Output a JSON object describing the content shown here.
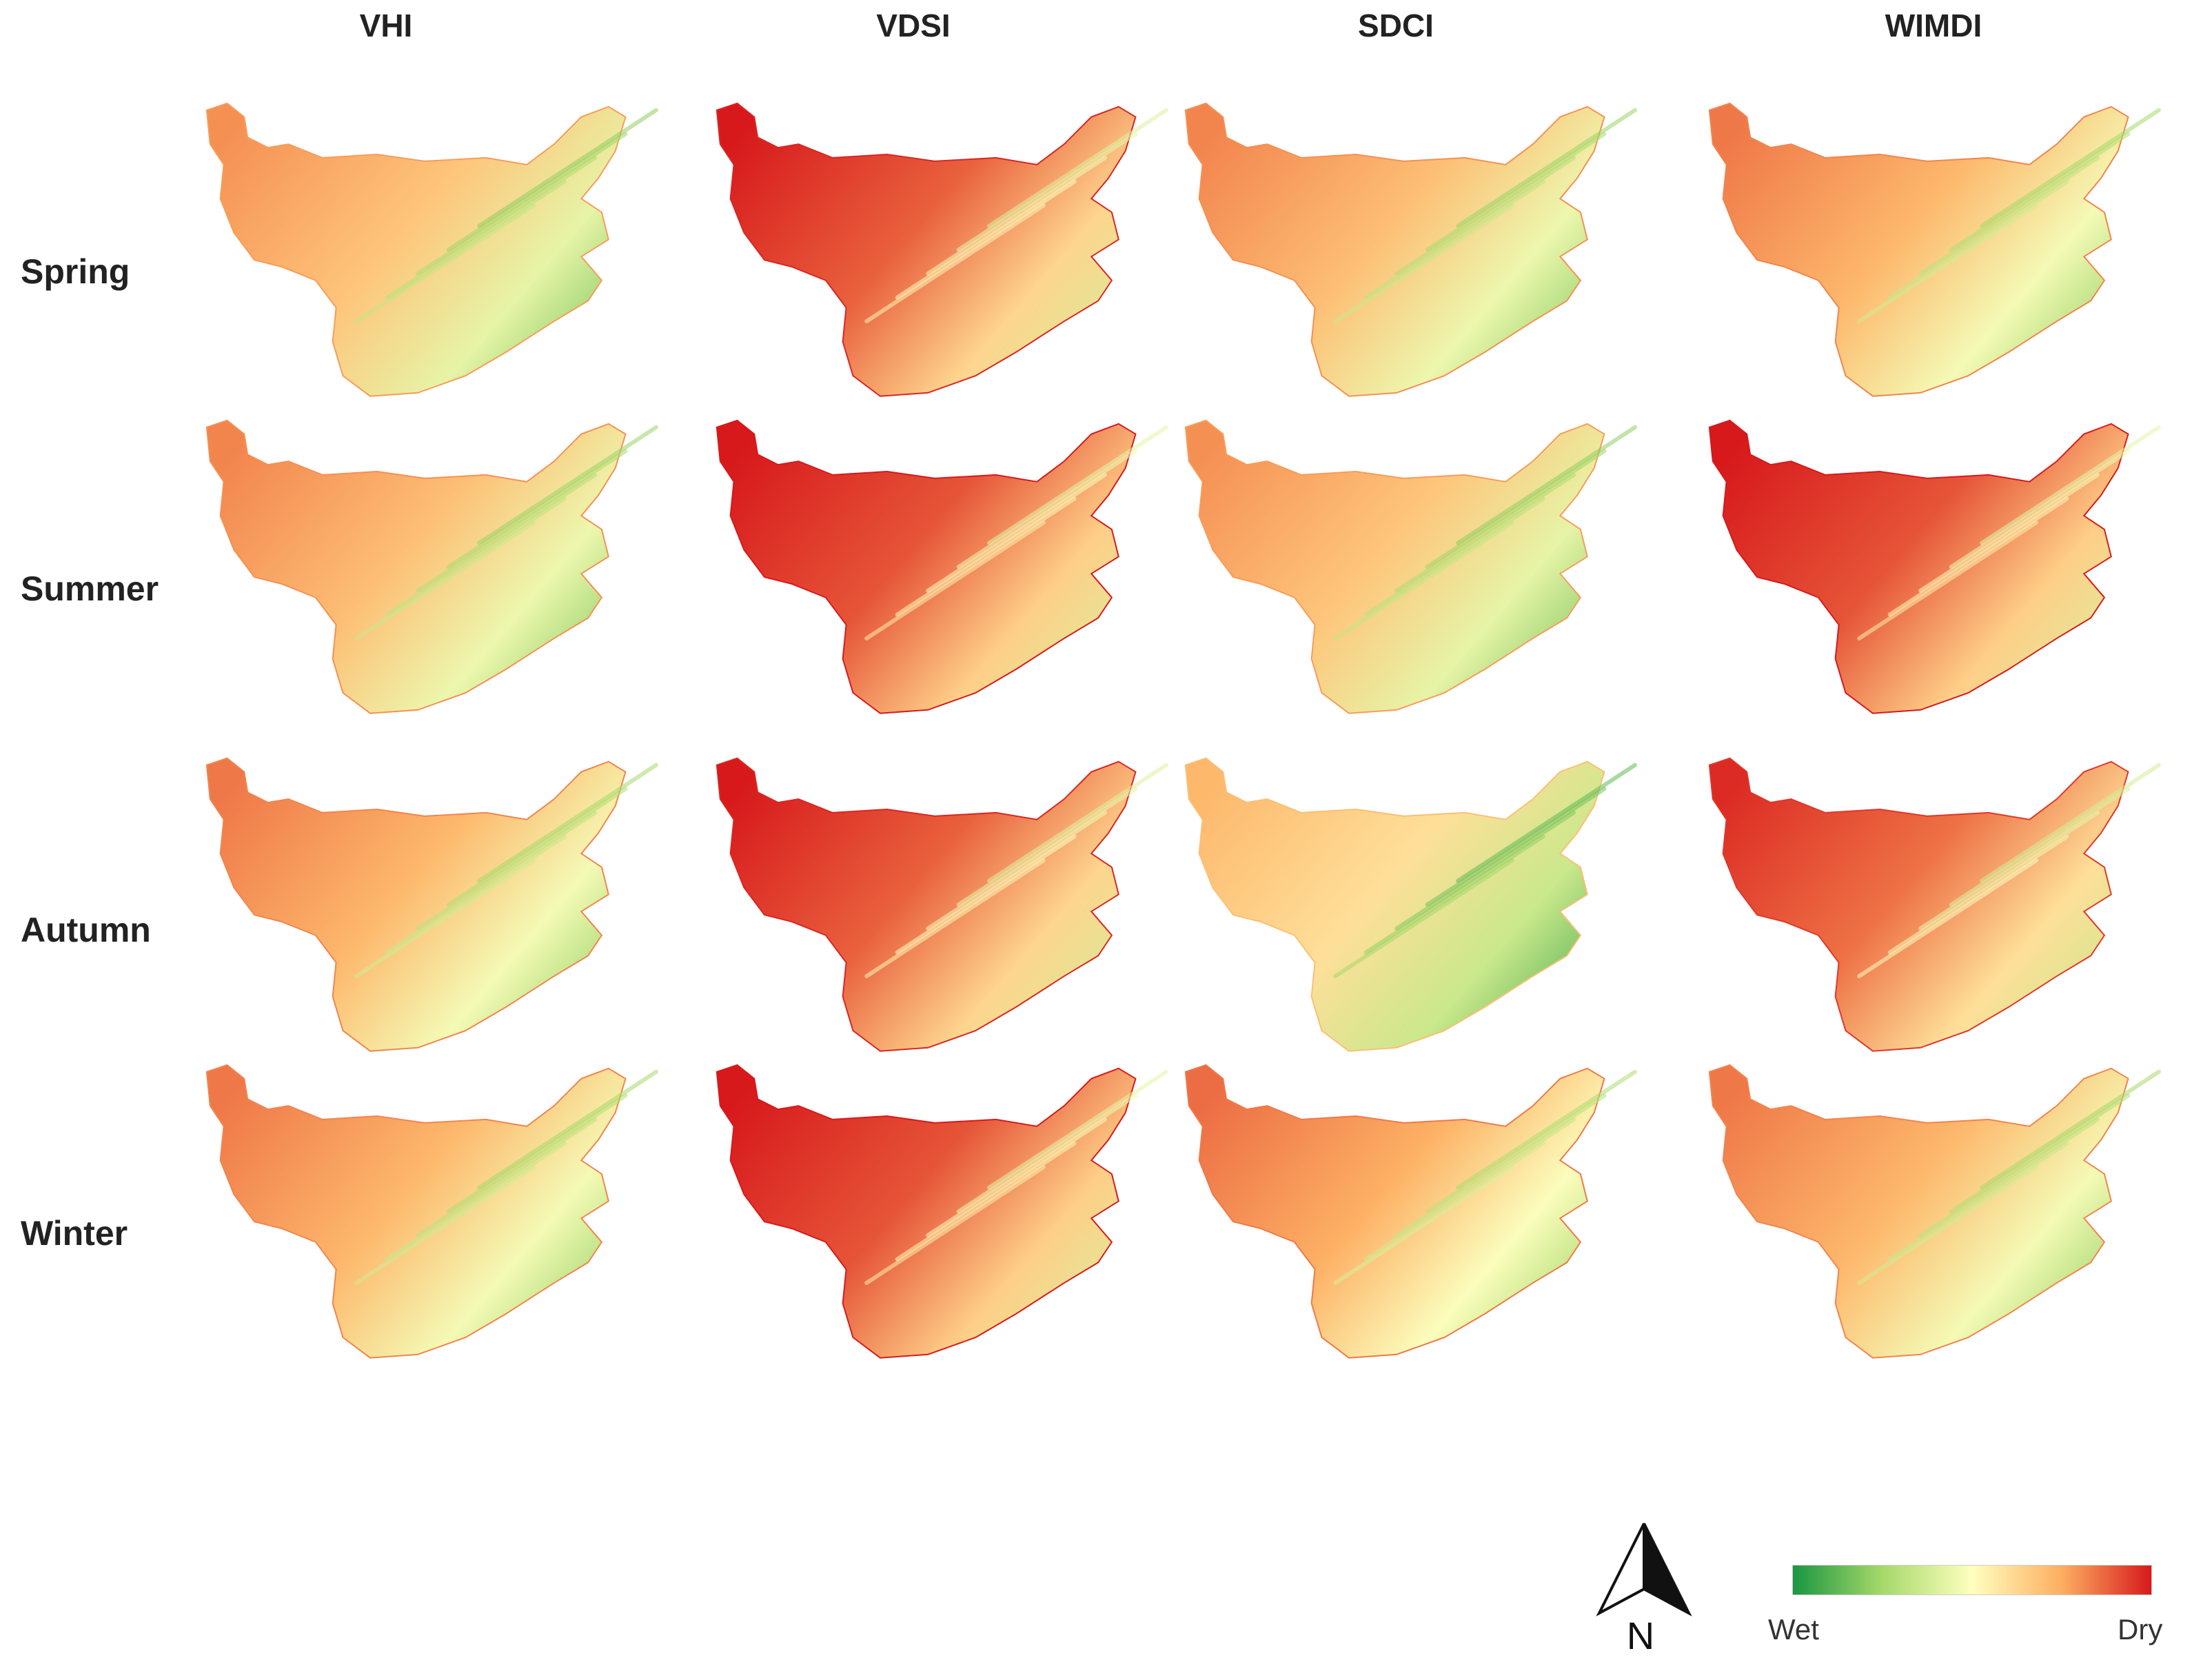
{
  "columns": [
    "VHI",
    "VDSI",
    "SDCI",
    "WIMDI"
  ],
  "rows": [
    "Spring",
    "Summer",
    "Autumn",
    "Winter"
  ],
  "north_label": "N",
  "legend": {
    "low_label": "Wet",
    "high_label": "Dry",
    "colors": [
      "#1a9641",
      "#a6d96a",
      "#ffffbf",
      "#fdae61",
      "#d7191c"
    ]
  },
  "map_dryness": [
    [
      0.68,
      0.88,
      0.7,
      0.72
    ],
    [
      0.7,
      0.9,
      0.68,
      0.9
    ],
    [
      0.72,
      0.88,
      0.6,
      0.85
    ],
    [
      0.72,
      0.9,
      0.74,
      0.72
    ]
  ]
}
